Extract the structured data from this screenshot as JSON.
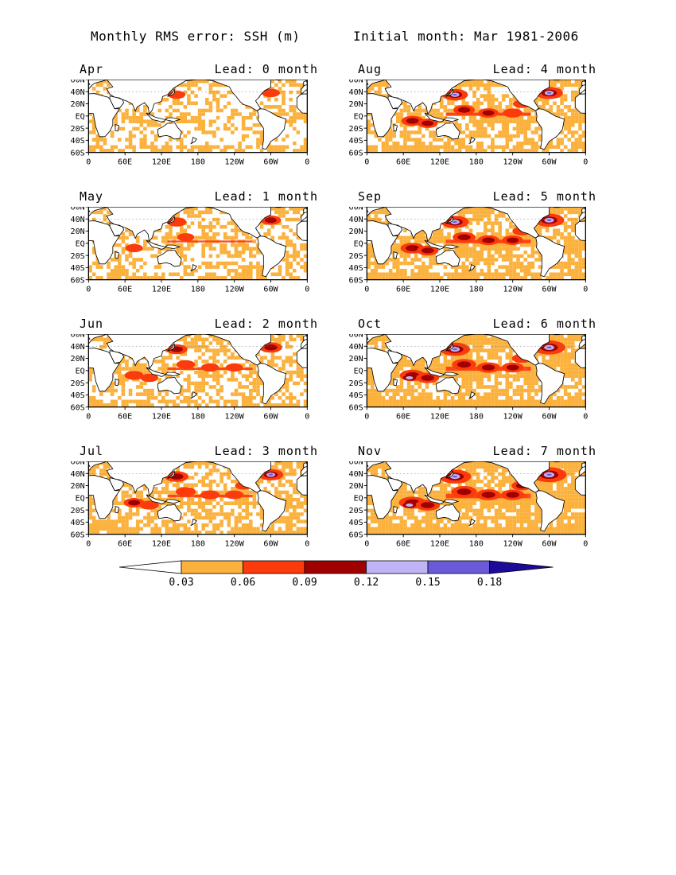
{
  "header": {
    "left_title": "Monthly RMS error: SSH (m)",
    "right_title": "Initial month: Mar 1981-2006"
  },
  "map_axes": {
    "lat_labels": [
      "60N",
      "40N",
      "20N",
      "EQ",
      "20S",
      "40S",
      "60S"
    ],
    "lon_labels": [
      "0",
      "60E",
      "120E",
      "180",
      "120W",
      "60W",
      "0"
    ]
  },
  "panels": [
    {
      "month": "Apr",
      "lead": "Lead: 0 month",
      "lead_months": 0
    },
    {
      "month": "Aug",
      "lead": "Lead: 4 month",
      "lead_months": 4
    },
    {
      "month": "May",
      "lead": "Lead: 1 month",
      "lead_months": 1
    },
    {
      "month": "Sep",
      "lead": "Lead: 5 month",
      "lead_months": 5
    },
    {
      "month": "Jun",
      "lead": "Lead: 2 month",
      "lead_months": 2
    },
    {
      "month": "Oct",
      "lead": "Lead: 6 month",
      "lead_months": 6
    },
    {
      "month": "Jul",
      "lead": "Lead: 3 month",
      "lead_months": 3
    },
    {
      "month": "Nov",
      "lead": "Lead: 7 month",
      "lead_months": 7
    }
  ],
  "colorbar": {
    "tick_labels": [
      "0.03",
      "0.06",
      "0.09",
      "0.12",
      "0.15",
      "0.18"
    ],
    "colors": [
      "#ffffff",
      "#fbb13c",
      "#fb3b0c",
      "#a10000",
      "#c0b4f7",
      "#6a5ad8",
      "#1e0a9a"
    ]
  },
  "palette": {
    "land": "#ffffff",
    "low": "#fbb13c",
    "mid": "#fb3b0c",
    "high": "#a10000",
    "very_high": "#c0b4f7",
    "extreme": "#6a5ad8"
  }
}
